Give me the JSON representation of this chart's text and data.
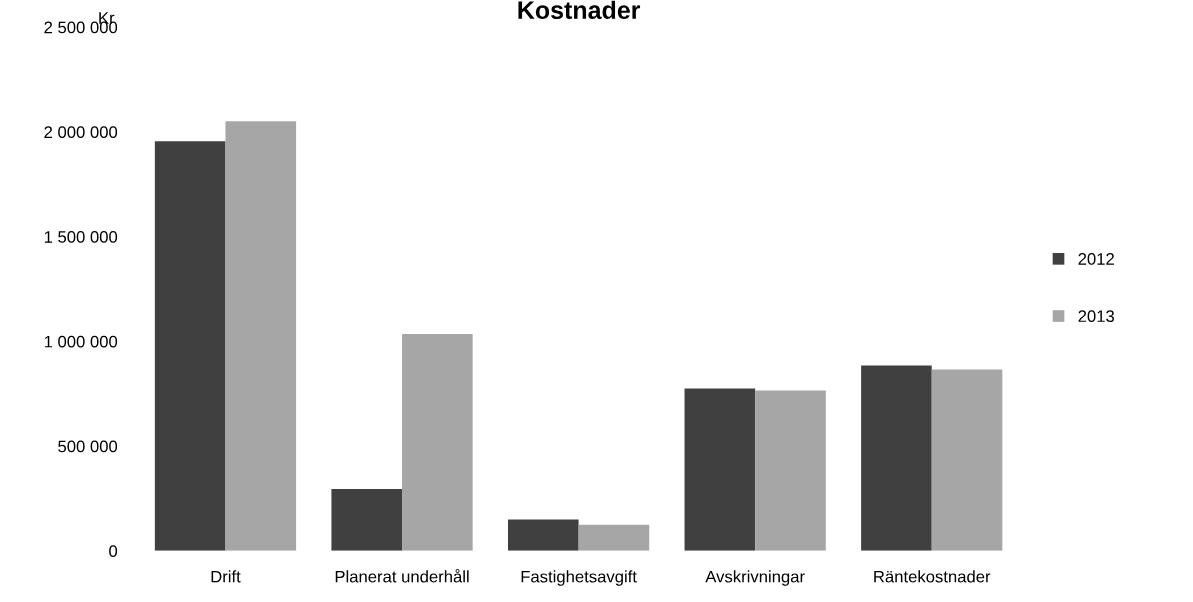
{
  "chart_data": {
    "type": "bar",
    "title": "Kostnader",
    "ylabel": "Kr",
    "categories": [
      "Drift",
      "Planerat underhåll",
      "Fastighetsavgift",
      "Avskrivningar",
      "Räntekostnader"
    ],
    "series": [
      {
        "name": "2012",
        "color": "#404040",
        "values": [
          1955000,
          295000,
          150000,
          775000,
          885000
        ]
      },
      {
        "name": "2013",
        "color": "#a6a6a6",
        "values": [
          2050000,
          1035000,
          125000,
          765000,
          865000
        ]
      }
    ],
    "ylim": [
      0,
      2500000
    ],
    "yticks": [
      {
        "value": 0,
        "label": "0"
      },
      {
        "value": 500000,
        "label": "500 000"
      },
      {
        "value": 1000000,
        "label": "1 000 000"
      },
      {
        "value": 1500000,
        "label": "1 500 000"
      },
      {
        "value": 2000000,
        "label": "2 000 000"
      },
      {
        "value": 2500000,
        "label": "2 500 000"
      }
    ],
    "grid": false,
    "legend": "right"
  }
}
